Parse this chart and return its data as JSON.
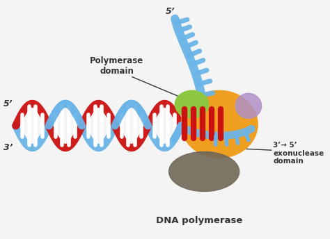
{
  "background_color": "#f4f4f4",
  "labels": {
    "polymerase_domain": "Polymerase\ndomain",
    "exonuclease_domain": "3’→ 5’\nexonuclease\ndomain",
    "dna_polymerase": "DNA polymerase",
    "five_prime_left": "5’",
    "three_prime_left": "3’",
    "five_prime_top": "5’"
  },
  "colors": {
    "blue_strand": "#6ab4e8",
    "red_strand": "#cc1111",
    "polymerase_body": "#f0a020",
    "green_domain": "#8dc63f",
    "purple_domain": "#b090c8",
    "dark_domain": "#706858",
    "background": "#f4f4f4",
    "text_dark": "#333333",
    "rung_white": "#ffffff"
  }
}
